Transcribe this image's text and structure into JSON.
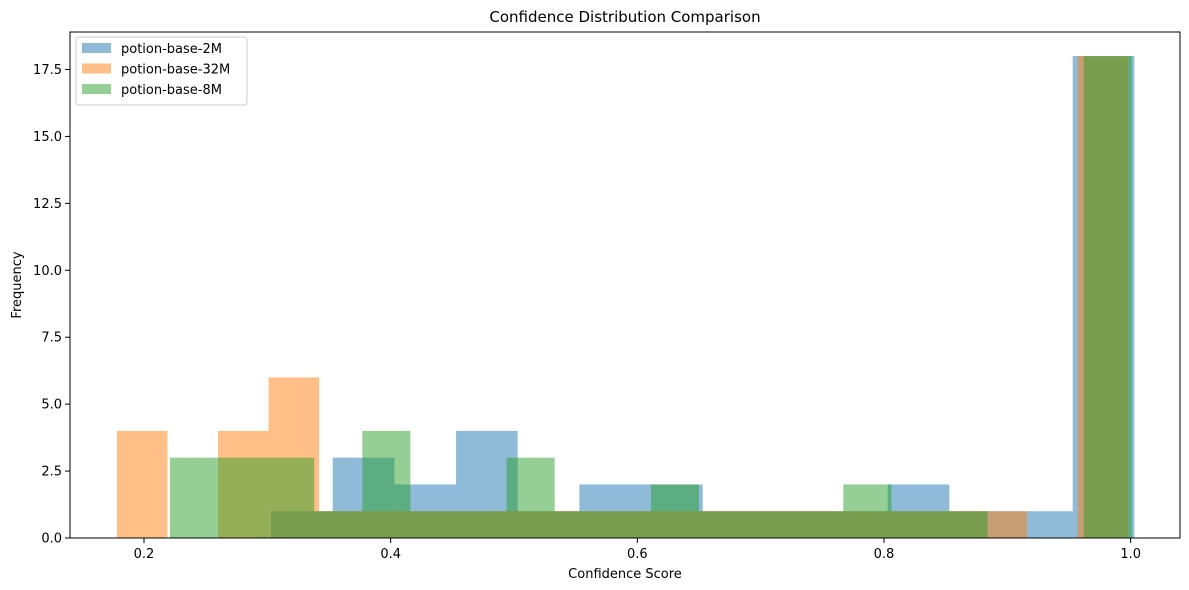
{
  "chart_data": {
    "type": "bar",
    "title": "Confidence Distribution Comparison",
    "xlabel": "Confidence Score",
    "ylabel": "Frequency",
    "xlim": [
      0.14,
      1.04
    ],
    "ylim": [
      0,
      18.9
    ],
    "xticks": [
      "0.2",
      "0.4",
      "0.6",
      "0.8",
      "1.0"
    ],
    "yticks": [
      "0.0",
      "2.5",
      "5.0",
      "7.5",
      "10.0",
      "12.5",
      "15.0",
      "17.5"
    ],
    "legend_position": "top-left",
    "grid": false,
    "series": [
      {
        "name": "potion-base-2M",
        "color": "#1f77b4",
        "bins": [
          {
            "x0": 0.303,
            "x1": 0.353,
            "count": 1
          },
          {
            "x0": 0.353,
            "x1": 0.403,
            "count": 3
          },
          {
            "x0": 0.403,
            "x1": 0.453,
            "count": 2
          },
          {
            "x0": 0.453,
            "x1": 0.503,
            "count": 4
          },
          {
            "x0": 0.503,
            "x1": 0.553,
            "count": 1
          },
          {
            "x0": 0.553,
            "x1": 0.603,
            "count": 2
          },
          {
            "x0": 0.603,
            "x1": 0.653,
            "count": 2
          },
          {
            "x0": 0.653,
            "x1": 0.703,
            "count": 1
          },
          {
            "x0": 0.703,
            "x1": 0.753,
            "count": 1
          },
          {
            "x0": 0.753,
            "x1": 0.803,
            "count": 1
          },
          {
            "x0": 0.803,
            "x1": 0.853,
            "count": 2
          },
          {
            "x0": 0.853,
            "x1": 0.903,
            "count": 1
          },
          {
            "x0": 0.903,
            "x1": 0.953,
            "count": 1
          },
          {
            "x0": 0.953,
            "x1": 1.003,
            "count": 18
          }
        ]
      },
      {
        "name": "potion-base-32M",
        "color": "#ff7f0e",
        "bins": [
          {
            "x0": 0.178,
            "x1": 0.219,
            "count": 4
          },
          {
            "x0": 0.26,
            "x1": 0.301,
            "count": 4
          },
          {
            "x0": 0.301,
            "x1": 0.342,
            "count": 6
          },
          {
            "x0": 0.342,
            "x1": 0.383,
            "count": 1
          },
          {
            "x0": 0.383,
            "x1": 0.424,
            "count": 1
          },
          {
            "x0": 0.424,
            "x1": 0.465,
            "count": 1
          },
          {
            "x0": 0.465,
            "x1": 0.506,
            "count": 1
          },
          {
            "x0": 0.506,
            "x1": 0.547,
            "count": 1
          },
          {
            "x0": 0.547,
            "x1": 0.588,
            "count": 1
          },
          {
            "x0": 0.588,
            "x1": 0.629,
            "count": 1
          },
          {
            "x0": 0.629,
            "x1": 0.67,
            "count": 1
          },
          {
            "x0": 0.67,
            "x1": 0.711,
            "count": 1
          },
          {
            "x0": 0.711,
            "x1": 0.752,
            "count": 1
          },
          {
            "x0": 0.752,
            "x1": 0.793,
            "count": 1
          },
          {
            "x0": 0.793,
            "x1": 0.834,
            "count": 1
          },
          {
            "x0": 0.834,
            "x1": 0.875,
            "count": 1
          },
          {
            "x0": 0.875,
            "x1": 0.916,
            "count": 1
          },
          {
            "x0": 0.957,
            "x1": 0.998,
            "count": 18
          }
        ]
      },
      {
        "name": "potion-base-8M",
        "color": "#2ca02c",
        "bins": [
          {
            "x0": 0.221,
            "x1": 0.26,
            "count": 3
          },
          {
            "x0": 0.26,
            "x1": 0.299,
            "count": 3
          },
          {
            "x0": 0.299,
            "x1": 0.338,
            "count": 3
          },
          {
            "x0": 0.338,
            "x1": 0.377,
            "count": 1
          },
          {
            "x0": 0.377,
            "x1": 0.416,
            "count": 4
          },
          {
            "x0": 0.416,
            "x1": 0.455,
            "count": 1
          },
          {
            "x0": 0.455,
            "x1": 0.494,
            "count": 1
          },
          {
            "x0": 0.494,
            "x1": 0.533,
            "count": 3
          },
          {
            "x0": 0.533,
            "x1": 0.572,
            "count": 1
          },
          {
            "x0": 0.572,
            "x1": 0.611,
            "count": 1
          },
          {
            "x0": 0.611,
            "x1": 0.65,
            "count": 2
          },
          {
            "x0": 0.65,
            "x1": 0.689,
            "count": 1
          },
          {
            "x0": 0.689,
            "x1": 0.728,
            "count": 1
          },
          {
            "x0": 0.728,
            "x1": 0.767,
            "count": 1
          },
          {
            "x0": 0.767,
            "x1": 0.806,
            "count": 2
          },
          {
            "x0": 0.806,
            "x1": 0.845,
            "count": 1
          },
          {
            "x0": 0.845,
            "x1": 0.884,
            "count": 1
          },
          {
            "x0": 0.962,
            "x1": 1.001,
            "count": 18
          }
        ]
      }
    ]
  }
}
